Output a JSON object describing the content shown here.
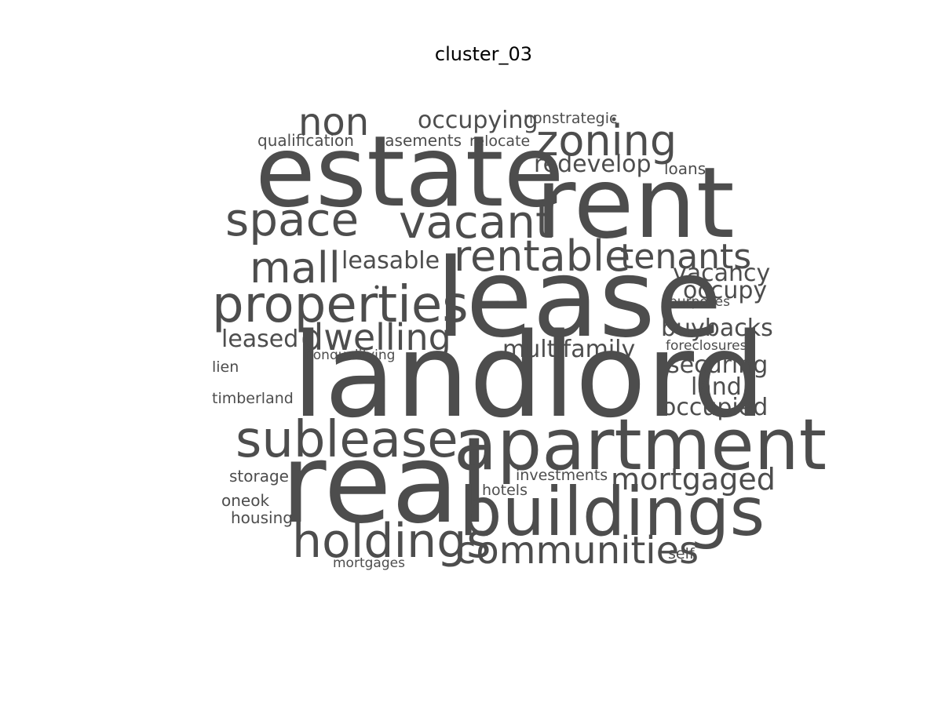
{
  "chart_data": {
    "type": "wordcloud",
    "title": "cluster_03",
    "color": "#4d4d4d",
    "words": [
      {
        "text": "landlord",
        "weight": 100
      },
      {
        "text": "real",
        "weight": 93
      },
      {
        "text": "lease",
        "weight": 92
      },
      {
        "text": "estate",
        "weight": 86
      },
      {
        "text": "rent",
        "weight": 86
      },
      {
        "text": "apartment",
        "weight": 62
      },
      {
        "text": "buildings",
        "weight": 59
      },
      {
        "text": "properties",
        "weight": 44
      },
      {
        "text": "sublease",
        "weight": 44
      },
      {
        "text": "holdings",
        "weight": 41
      },
      {
        "text": "vacant",
        "weight": 40
      },
      {
        "text": "space",
        "weight": 40
      },
      {
        "text": "rentable",
        "weight": 38
      },
      {
        "text": "mall",
        "weight": 38
      },
      {
        "text": "zoning",
        "weight": 37
      },
      {
        "text": "communities",
        "weight": 34
      },
      {
        "text": "non",
        "weight": 33
      },
      {
        "text": "dwelling",
        "weight": 33
      },
      {
        "text": "tenants",
        "weight": 32
      },
      {
        "text": "mortgaged",
        "weight": 28
      },
      {
        "text": "occupying",
        "weight": 22
      },
      {
        "text": "redevelop",
        "weight": 22
      },
      {
        "text": "leasable",
        "weight": 22
      },
      {
        "text": "multifamily",
        "weight": 22
      },
      {
        "text": "vacancy",
        "weight": 22
      },
      {
        "text": "occupy",
        "weight": 22
      },
      {
        "text": "buybacks",
        "weight": 22
      },
      {
        "text": "securing",
        "weight": 22
      },
      {
        "text": "land",
        "weight": 22
      },
      {
        "text": "occupied",
        "weight": 22
      },
      {
        "text": "leased",
        "weight": 22
      },
      {
        "text": "qualification",
        "weight": 16
      },
      {
        "text": "easements",
        "weight": 16
      },
      {
        "text": "relocate",
        "weight": 15
      },
      {
        "text": "loans",
        "weight": 16
      },
      {
        "text": "nonstrategic",
        "weight": 15
      },
      {
        "text": "purposes",
        "weight": 14
      },
      {
        "text": "foreclosures",
        "weight": 14
      },
      {
        "text": "nonqualifying",
        "weight": 14
      },
      {
        "text": "investments",
        "weight": 15
      },
      {
        "text": "hotels",
        "weight": 15
      },
      {
        "text": "storage",
        "weight": 16
      },
      {
        "text": "oneok",
        "weight": 16
      },
      {
        "text": "housing",
        "weight": 16
      },
      {
        "text": "mortgages",
        "weight": 14
      },
      {
        "text": "self",
        "weight": 15
      },
      {
        "text": "lien",
        "weight": 15
      },
      {
        "text": "timberland",
        "weight": 15
      }
    ]
  }
}
